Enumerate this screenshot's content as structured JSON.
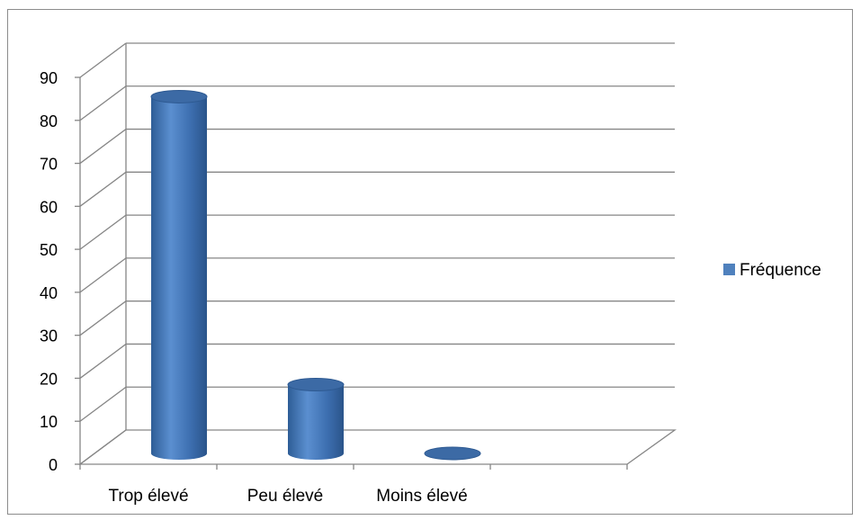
{
  "chart_data": {
    "type": "bar",
    "style": "3d-cylinder",
    "categories": [
      "Trop élevé",
      "Peu élevé",
      "Moins élevé"
    ],
    "series": [
      {
        "name": "Fréquence",
        "values": [
          83,
          16,
          0
        ],
        "color": "#4f81bd"
      }
    ],
    "ylim": [
      0,
      90
    ],
    "yticks": [
      "0",
      "10",
      "20",
      "30",
      "40",
      "50",
      "60",
      "70",
      "80",
      "90"
    ],
    "grid": true,
    "legend": "right"
  }
}
